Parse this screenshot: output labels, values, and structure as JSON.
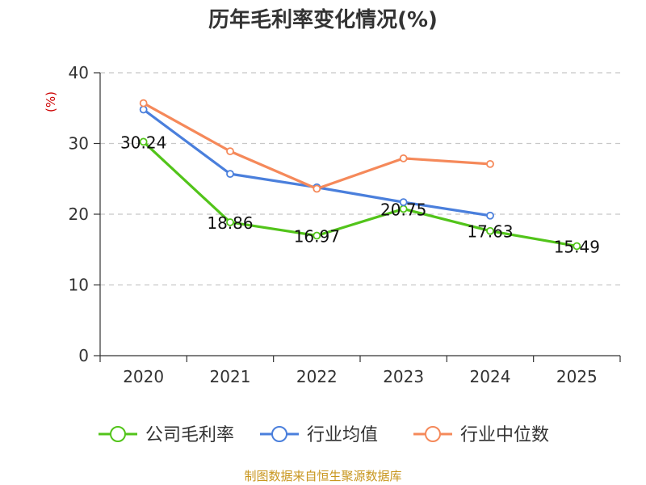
{
  "chart_data": {
    "type": "line",
    "title": "历年毛利率变化情况(%)",
    "xlabel": "",
    "ylabel": "(%)",
    "categories": [
      "2020",
      "2021",
      "2022",
      "2023",
      "2024",
      "2025"
    ],
    "ylim": [
      0,
      40
    ],
    "yticks": [
      0,
      10,
      20,
      30,
      40
    ],
    "grid": true,
    "legend_position": "bottom",
    "series": [
      {
        "name": "公司毛利率",
        "color": "#52c41a",
        "values": [
          30.24,
          18.86,
          16.97,
          20.75,
          17.63,
          15.49
        ],
        "labels": [
          "30.24",
          "18.86",
          "16.97",
          "20.75",
          "17.63",
          "15.49"
        ]
      },
      {
        "name": "行业均值",
        "color": "#4a7fdc",
        "values": [
          34.8,
          25.7,
          23.8,
          21.7,
          19.8,
          null
        ]
      },
      {
        "name": "行业中位数",
        "color": "#f5895a",
        "values": [
          35.7,
          28.9,
          23.6,
          27.9,
          27.1,
          null
        ]
      }
    ]
  },
  "source": "制图数据来自恒生聚源数据库"
}
